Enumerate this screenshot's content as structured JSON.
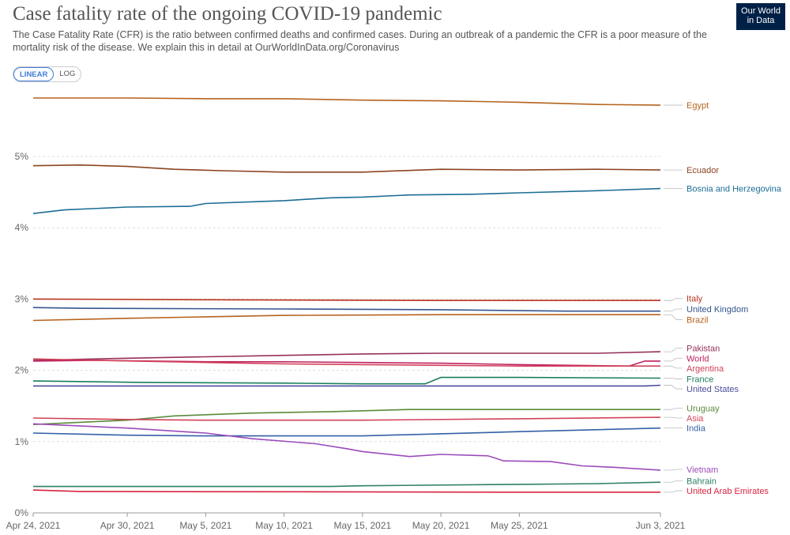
{
  "header": {
    "title": "Case fatality rate of the ongoing COVID-19 pandemic",
    "subtitle": "The Case Fatality Rate (CFR) is the ratio between confirmed deaths and confirmed cases. During an outbreak of a pandemic the CFR is a poor measure of the mortality risk of the disease. We explain this in detail at OurWorldInData.org/Coronavirus",
    "logo_line1": "Our World",
    "logo_line2": "in Data"
  },
  "scale_toggle": {
    "linear_label": "LINEAR",
    "log_label": "LOG",
    "selected": "LINEAR"
  },
  "chart_data": {
    "type": "line",
    "title": "Case fatality rate of the ongoing COVID-19 pandemic",
    "x_ticks": [
      "Apr 24, 2021",
      "Apr 30, 2021",
      "May 5, 2021",
      "May 10, 2021",
      "May 15, 2021",
      "May 20, 2021",
      "May 25, 2021",
      "Jun 3, 2021"
    ],
    "x_range": [
      "2021-04-24",
      "2021-06-03"
    ],
    "y_ticks": [
      "0%",
      "1%",
      "2%",
      "3%",
      "4%",
      "5%"
    ],
    "ylim": [
      0,
      6.0
    ],
    "y_unit": "%",
    "grid": "horizontal dashed",
    "series": [
      {
        "name": "Egypt",
        "color": "#b5631f",
        "points": [
          [
            "2021-04-24",
            5.82
          ],
          [
            "2021-04-30",
            5.82
          ],
          [
            "2021-05-05",
            5.81
          ],
          [
            "2021-05-10",
            5.81
          ],
          [
            "2021-05-15",
            5.79
          ],
          [
            "2021-05-20",
            5.78
          ],
          [
            "2021-05-25",
            5.76
          ],
          [
            "2021-05-30",
            5.73
          ],
          [
            "2021-06-03",
            5.72
          ]
        ]
      },
      {
        "name": "Ecuador",
        "color": "#8c4320",
        "points": [
          [
            "2021-04-24",
            4.87
          ],
          [
            "2021-04-27",
            4.88
          ],
          [
            "2021-04-30",
            4.86
          ],
          [
            "2021-05-03",
            4.82
          ],
          [
            "2021-05-06",
            4.8
          ],
          [
            "2021-05-10",
            4.78
          ],
          [
            "2021-05-15",
            4.78
          ],
          [
            "2021-05-20",
            4.82
          ],
          [
            "2021-05-25",
            4.81
          ],
          [
            "2021-05-30",
            4.82
          ],
          [
            "2021-06-03",
            4.81
          ]
        ]
      },
      {
        "name": "Bosnia and Herzegovina",
        "color": "#1c6d96",
        "points": [
          [
            "2021-04-24",
            4.2
          ],
          [
            "2021-04-26",
            4.25
          ],
          [
            "2021-04-30",
            4.29
          ],
          [
            "2021-05-04",
            4.3
          ],
          [
            "2021-05-05",
            4.34
          ],
          [
            "2021-05-10",
            4.38
          ],
          [
            "2021-05-13",
            4.42
          ],
          [
            "2021-05-15",
            4.43
          ],
          [
            "2021-05-18",
            4.46
          ],
          [
            "2021-05-22",
            4.47
          ],
          [
            "2021-05-25",
            4.49
          ],
          [
            "2021-05-30",
            4.52
          ],
          [
            "2021-06-03",
            4.55
          ]
        ]
      },
      {
        "name": "Italy",
        "color": "#b8321d",
        "points": [
          [
            "2021-04-24",
            3.0
          ],
          [
            "2021-05-05",
            2.99
          ],
          [
            "2021-05-20",
            2.98
          ],
          [
            "2021-06-03",
            2.98
          ]
        ]
      },
      {
        "name": "United Kingdom",
        "color": "#34568f",
        "points": [
          [
            "2021-04-24",
            2.88
          ],
          [
            "2021-04-27",
            2.87
          ],
          [
            "2021-05-10",
            2.86
          ],
          [
            "2021-05-20",
            2.85
          ],
          [
            "2021-05-28",
            2.83
          ],
          [
            "2021-06-03",
            2.83
          ]
        ]
      },
      {
        "name": "Brazil",
        "color": "#b5631f",
        "points": [
          [
            "2021-04-24",
            2.7
          ],
          [
            "2021-04-30",
            2.73
          ],
          [
            "2021-05-05",
            2.75
          ],
          [
            "2021-05-10",
            2.77
          ],
          [
            "2021-05-20",
            2.78
          ],
          [
            "2021-06-03",
            2.78
          ]
        ]
      },
      {
        "name": "Pakistan",
        "color": "#96305a",
        "points": [
          [
            "2021-04-24",
            2.14
          ],
          [
            "2021-04-30",
            2.17
          ],
          [
            "2021-05-05",
            2.19
          ],
          [
            "2021-05-10",
            2.21
          ],
          [
            "2021-05-15",
            2.23
          ],
          [
            "2021-05-20",
            2.24
          ],
          [
            "2021-05-30",
            2.24
          ],
          [
            "2021-06-03",
            2.26
          ]
        ]
      },
      {
        "name": "World",
        "color": "#c02160",
        "points": [
          [
            "2021-04-24",
            2.13
          ],
          [
            "2021-04-28",
            2.14
          ],
          [
            "2021-05-05",
            2.12
          ],
          [
            "2021-05-10",
            2.12
          ],
          [
            "2021-05-15",
            2.11
          ],
          [
            "2021-05-20",
            2.1
          ],
          [
            "2021-05-25",
            2.08
          ],
          [
            "2021-06-01",
            2.06
          ],
          [
            "2021-06-02",
            2.13
          ],
          [
            "2021-06-03",
            2.13
          ]
        ]
      },
      {
        "name": "Argentina",
        "color": "#d2425a",
        "points": [
          [
            "2021-04-24",
            2.16
          ],
          [
            "2021-04-28",
            2.14
          ],
          [
            "2021-05-05",
            2.11
          ],
          [
            "2021-05-10",
            2.09
          ],
          [
            "2021-05-15",
            2.08
          ],
          [
            "2021-05-20",
            2.07
          ],
          [
            "2021-05-25",
            2.06
          ],
          [
            "2021-06-03",
            2.06
          ]
        ]
      },
      {
        "name": "France",
        "color": "#1b7f5c",
        "points": [
          [
            "2021-04-24",
            1.85
          ],
          [
            "2021-05-01",
            1.83
          ],
          [
            "2021-05-10",
            1.82
          ],
          [
            "2021-05-15",
            1.81
          ],
          [
            "2021-05-19",
            1.81
          ],
          [
            "2021-05-20",
            1.9
          ],
          [
            "2021-05-25",
            1.9
          ],
          [
            "2021-06-03",
            1.89
          ]
        ]
      },
      {
        "name": "United States",
        "color": "#4c4c9c",
        "points": [
          [
            "2021-04-24",
            1.78
          ],
          [
            "2021-05-15",
            1.78
          ],
          [
            "2021-06-02",
            1.78
          ],
          [
            "2021-06-03",
            1.79
          ]
        ]
      },
      {
        "name": "Uruguay",
        "color": "#5b8a3a",
        "points": [
          [
            "2021-04-24",
            1.24
          ],
          [
            "2021-04-30",
            1.3
          ],
          [
            "2021-05-03",
            1.36
          ],
          [
            "2021-05-08",
            1.4
          ],
          [
            "2021-05-13",
            1.42
          ],
          [
            "2021-05-18",
            1.45
          ],
          [
            "2021-05-25",
            1.45
          ],
          [
            "2021-06-03",
            1.45
          ]
        ]
      },
      {
        "name": "Asia",
        "color": "#d2425a",
        "points": [
          [
            "2021-04-24",
            1.33
          ],
          [
            "2021-04-30",
            1.31
          ],
          [
            "2021-05-05",
            1.3
          ],
          [
            "2021-05-15",
            1.3
          ],
          [
            "2021-05-25",
            1.32
          ],
          [
            "2021-06-03",
            1.34
          ]
        ]
      },
      {
        "name": "India",
        "color": "#3460a7",
        "points": [
          [
            "2021-04-24",
            1.12
          ],
          [
            "2021-04-30",
            1.09
          ],
          [
            "2021-05-05",
            1.08
          ],
          [
            "2021-05-10",
            1.08
          ],
          [
            "2021-05-15",
            1.08
          ],
          [
            "2021-05-20",
            1.11
          ],
          [
            "2021-05-25",
            1.14
          ],
          [
            "2021-06-03",
            1.19
          ]
        ]
      },
      {
        "name": "Vietnam",
        "color": "#9a4bbb",
        "points": [
          [
            "2021-04-24",
            1.25
          ],
          [
            "2021-04-30",
            1.19
          ],
          [
            "2021-05-05",
            1.12
          ],
          [
            "2021-05-08",
            1.04
          ],
          [
            "2021-05-12",
            0.97
          ],
          [
            "2021-05-14",
            0.9
          ],
          [
            "2021-05-15",
            0.86
          ],
          [
            "2021-05-18",
            0.79
          ],
          [
            "2021-05-20",
            0.82
          ],
          [
            "2021-05-23",
            0.8
          ],
          [
            "2021-05-24",
            0.73
          ],
          [
            "2021-05-27",
            0.72
          ],
          [
            "2021-05-29",
            0.66
          ],
          [
            "2021-05-31",
            0.64
          ],
          [
            "2021-06-03",
            0.6
          ]
        ]
      },
      {
        "name": "Bahrain",
        "color": "#2f7f69",
        "points": [
          [
            "2021-04-24",
            0.37
          ],
          [
            "2021-05-13",
            0.37
          ],
          [
            "2021-05-15",
            0.38
          ],
          [
            "2021-05-25",
            0.4
          ],
          [
            "2021-05-30",
            0.41
          ],
          [
            "2021-06-03",
            0.43
          ]
        ]
      },
      {
        "name": "United Arab Emirates",
        "color": "#d9243f",
        "points": [
          [
            "2021-04-24",
            0.32
          ],
          [
            "2021-04-27",
            0.3
          ],
          [
            "2021-05-25",
            0.29
          ],
          [
            "2021-06-03",
            0.29
          ]
        ]
      }
    ],
    "labels": [
      {
        "series": "Egypt",
        "label_value": 5.72
      },
      {
        "series": "Ecuador",
        "label_value": 4.81
      },
      {
        "series": "Bosnia and Herzegovina",
        "label_value": 4.55
      },
      {
        "series": "Italy",
        "label_value": 3.01
      },
      {
        "series": "United Kingdom",
        "label_value": 2.86
      },
      {
        "series": "Brazil",
        "label_value": 2.71
      },
      {
        "series": "Pakistan",
        "label_value": 2.31
      },
      {
        "series": "World",
        "label_value": 2.17
      },
      {
        "series": "Argentina",
        "label_value": 2.03
      },
      {
        "series": "France",
        "label_value": 1.88
      },
      {
        "series": "United States",
        "label_value": 1.74
      },
      {
        "series": "Uruguay",
        "label_value": 1.47
      },
      {
        "series": "Asia",
        "label_value": 1.33
      },
      {
        "series": "India",
        "label_value": 1.19
      },
      {
        "series": "Vietnam",
        "label_value": 0.61
      },
      {
        "series": "Bahrain",
        "label_value": 0.45
      },
      {
        "series": "United Arab Emirates",
        "label_value": 0.31
      }
    ]
  }
}
